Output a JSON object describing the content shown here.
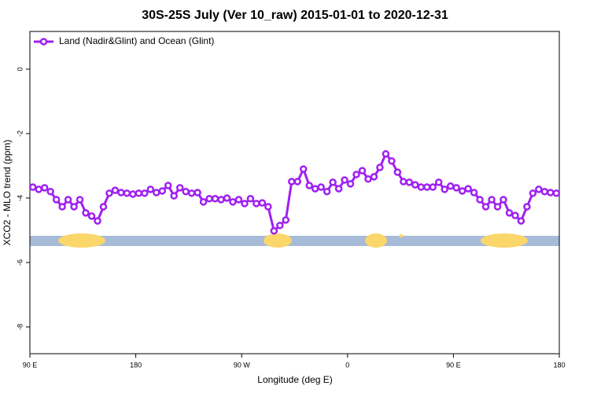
{
  "chart_data": {
    "type": "line",
    "title": "30S-25S July (Ver 10_raw)   2015-01-01 to 2020-12-31",
    "xlabel": "Longitude (deg E)",
    "ylabel": "XCO2 - MLO trend (ppm)",
    "x": [
      92.5,
      97.5,
      102.5,
      107.5,
      112.5,
      117.5,
      122.5,
      127.5,
      132.5,
      137.5,
      142.5,
      147.5,
      152.5,
      157.5,
      162.5,
      167.5,
      172.5,
      177.5,
      182.5,
      187.5,
      192.5,
      197.5,
      202.5,
      207.5,
      212.5,
      217.5,
      222.5,
      227.5,
      232.5,
      237.5,
      242.5,
      247.5,
      252.5,
      257.5,
      262.5,
      267.5,
      272.5,
      277.5,
      282.5,
      287.5,
      292.5,
      297.5,
      302.5,
      307.5,
      312.5,
      317.5,
      322.5,
      327.5,
      332.5,
      337.5,
      342.5,
      347.5,
      352.5,
      357.5,
      362.5,
      367.5,
      372.5,
      377.5,
      382.5,
      387.5,
      392.5,
      397.5,
      402.5,
      407.5,
      412.5,
      417.5,
      422.5,
      427.5,
      432.5,
      437.5,
      442.5,
      447.5,
      452.5,
      457.5,
      462.5,
      467.5,
      472.5,
      477.5,
      482.5,
      487.5,
      492.5,
      497.5,
      502.5,
      507.5,
      512.5,
      517.5,
      522.5,
      527.5,
      532.5,
      537.5
    ],
    "series": [
      {
        "name": "Land (Nadir&Glint) and Ocean (Glint)",
        "color": "#a020f0",
        "values": [
          -3.66,
          -3.73,
          -3.68,
          -3.8,
          -4.05,
          -4.27,
          -4.05,
          -4.27,
          -4.05,
          -4.46,
          -4.56,
          -4.71,
          -4.27,
          -3.85,
          -3.76,
          -3.83,
          -3.85,
          -3.88,
          -3.85,
          -3.85,
          -3.73,
          -3.83,
          -3.78,
          -3.61,
          -3.93,
          -3.68,
          -3.8,
          -3.85,
          -3.83,
          -4.12,
          -4.02,
          -4.02,
          -4.05,
          -4.0,
          -4.12,
          -4.05,
          -4.17,
          -4.02,
          -4.17,
          -4.15,
          -4.27,
          -5.02,
          -4.85,
          -4.68,
          -3.49,
          -3.49,
          -3.1,
          -3.61,
          -3.71,
          -3.66,
          -3.8,
          -3.51,
          -3.71,
          -3.44,
          -3.56,
          -3.27,
          -3.15,
          -3.41,
          -3.34,
          -3.05,
          -2.63,
          -2.85,
          -3.2,
          -3.49,
          -3.51,
          -3.59,
          -3.66,
          -3.66,
          -3.66,
          -3.51,
          -3.73,
          -3.63,
          -3.68,
          -3.78,
          -3.71,
          -3.83,
          -4.05,
          -4.27,
          -4.05,
          -4.27,
          -4.05,
          -4.46,
          -4.54,
          -4.71,
          -4.27,
          -3.85,
          -3.73,
          -3.8,
          -3.83,
          -3.85
        ]
      }
    ],
    "xlim": [
      90,
      540
    ],
    "xticks": [
      {
        "value": 90,
        "label": "90 E"
      },
      180,
      {
        "value": 270,
        "label": "90 W"
      },
      {
        "value": 360,
        "label": "0"
      },
      {
        "value": 450,
        "label": "90 E"
      },
      {
        "value": 540,
        "label": "180"
      }
    ],
    "ylim": [
      -8.83,
      1.17
    ],
    "yticks": [
      0,
      -2,
      -4,
      -6,
      -8
    ],
    "legend": "upper left"
  }
}
